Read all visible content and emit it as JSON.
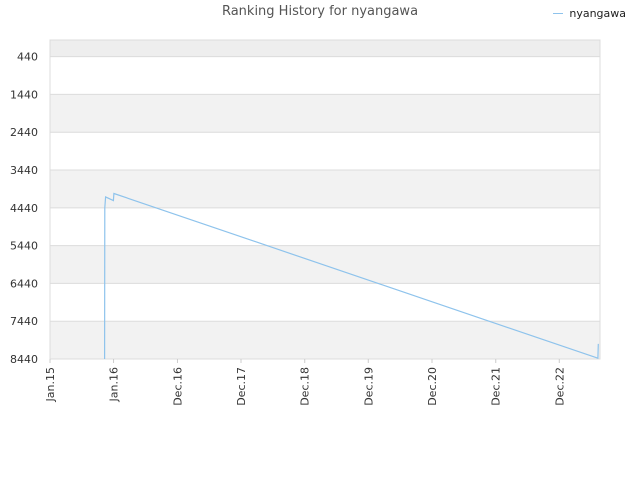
{
  "chart_data": {
    "type": "line",
    "title": "Ranking History for nyangawa",
    "xlabel": "",
    "ylabel": "",
    "y_axis_inverted": true,
    "ylim": [
      0,
      8440
    ],
    "y_ticks": [
      440,
      1440,
      2440,
      3440,
      4440,
      5440,
      6440,
      7440,
      8440
    ],
    "x_ticks": [
      "Jan.15",
      "Jan.16",
      "Dec.16",
      "Dec.17",
      "Dec.18",
      "Dec.19",
      "Dec.20",
      "Dec.21",
      "Dec.22"
    ],
    "legend_position": "top-right",
    "grid": true,
    "series": [
      {
        "name": "nyangawa",
        "color": "#8ec3ec",
        "points": [
          {
            "x": "2015-10-15",
            "y": 8440
          },
          {
            "x": "2015-10-16",
            "y": 4440
          },
          {
            "x": "2015-10-20",
            "y": 4150
          },
          {
            "x": "2015-11-30",
            "y": 4250
          },
          {
            "x": "2015-12-03",
            "y": 4060
          },
          {
            "x": "2022-11-20",
            "y": 8420
          },
          {
            "x": "2022-11-22",
            "y": 8040
          }
        ]
      }
    ]
  },
  "legend": {
    "label": "nyangawa"
  }
}
